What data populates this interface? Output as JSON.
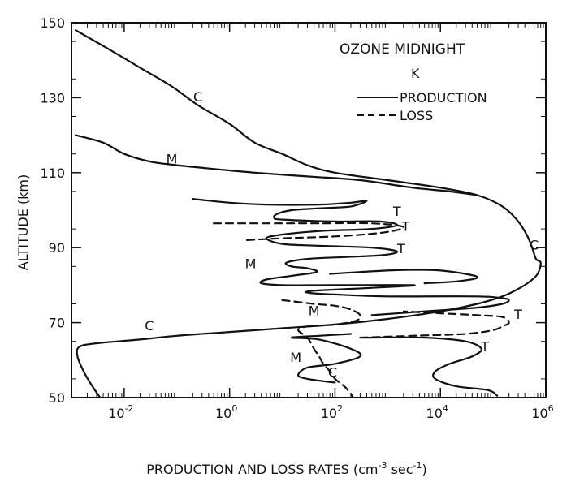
{
  "chart_data": {
    "type": "line",
    "title": "OZONE MIDNIGHT",
    "legend_title": "K",
    "xlabel": "PRODUCTION AND LOSS RATES (cm",
    "xlabel_exp1": "-3",
    "xlabel_mid": " sec",
    "xlabel_exp2": "-1",
    "xlabel_end": ")",
    "ylabel": "ALTITUDE (km)",
    "x_scale": "log",
    "xlim": [
      0.001,
      1000000
    ],
    "ylim": [
      50,
      150
    ],
    "x_ticks": [
      {
        "value": 0.01,
        "base": "10",
        "exp": "-2"
      },
      {
        "value": 1,
        "base": "10",
        "exp": "0"
      },
      {
        "value": 100,
        "base": "10",
        "exp": "2"
      },
      {
        "value": 10000,
        "base": "10",
        "exp": "4"
      },
      {
        "value": 1000000,
        "base": "10",
        "exp": "6"
      }
    ],
    "y_ticks": [
      "50",
      "70",
      "90",
      "110",
      "130",
      "150"
    ],
    "legend_position": "top-right",
    "legend": [
      {
        "label": "PRODUCTION",
        "style": "solid"
      },
      {
        "label": "LOSS",
        "style": "dashed"
      }
    ],
    "series": [
      {
        "label": "C",
        "kind": "production",
        "points": [
          [
            0.0012,
            148
          ],
          [
            0.005,
            143
          ],
          [
            0.02,
            138
          ],
          [
            0.08,
            133
          ],
          [
            0.25,
            128
          ],
          [
            1,
            123
          ],
          [
            3,
            118
          ],
          [
            10,
            115
          ],
          [
            30,
            112
          ],
          [
            100,
            110
          ],
          [
            1000,
            108
          ],
          [
            10000,
            106
          ],
          [
            50000,
            104
          ],
          [
            150000,
            101
          ],
          [
            300000,
            97
          ],
          [
            450000,
            93
          ],
          [
            550000,
            90
          ],
          [
            650000,
            87
          ],
          [
            800000,
            86
          ],
          [
            700000,
            83
          ],
          [
            500000,
            81
          ],
          [
            300000,
            79
          ],
          [
            150000,
            77
          ],
          [
            50000,
            75
          ],
          [
            10000,
            73
          ],
          [
            1000,
            71
          ],
          [
            100,
            69.5
          ],
          [
            10,
            68.5
          ],
          [
            1,
            67.5
          ],
          [
            0.1,
            66.5
          ],
          [
            0.02,
            65.5
          ],
          [
            0.003,
            64.5
          ],
          [
            0.0014,
            63.5
          ],
          [
            0.0013,
            61
          ],
          [
            0.0017,
            57
          ],
          [
            0.0025,
            53
          ],
          [
            0.0035,
            50
          ]
        ]
      },
      {
        "label": "M",
        "kind": "production",
        "points": [
          [
            0.0012,
            120
          ],
          [
            0.004,
            118
          ],
          [
            0.01,
            115
          ],
          [
            0.03,
            113
          ],
          [
            0.1,
            112
          ],
          [
            0.5,
            111
          ],
          [
            3,
            110
          ],
          [
            30,
            109
          ],
          [
            300,
            108
          ],
          [
            3000,
            106
          ],
          [
            15000,
            105
          ],
          [
            50000,
            104
          ]
        ]
      },
      {
        "label": "T",
        "kind": "production",
        "points": [
          [
            0.2,
            103
          ],
          [
            1,
            102
          ],
          [
            5,
            101.5
          ],
          [
            50,
            101.5
          ],
          [
            200,
            102
          ],
          [
            400,
            102.5
          ],
          [
            200,
            101
          ],
          [
            50,
            100.5
          ],
          [
            15,
            100
          ],
          [
            8,
            99
          ],
          [
            7,
            98
          ],
          [
            10,
            97.5
          ],
          [
            100,
            97
          ],
          [
            700,
            97
          ],
          [
            1500,
            96
          ],
          [
            500,
            95
          ],
          [
            60,
            94.5
          ],
          [
            10,
            93.5
          ],
          [
            5,
            92.5
          ],
          [
            10,
            91
          ],
          [
            50,
            90.5
          ],
          [
            500,
            90
          ],
          [
            1500,
            89
          ],
          [
            800,
            88
          ],
          [
            150,
            87.5
          ],
          [
            30,
            87
          ],
          [
            12,
            86
          ],
          [
            15,
            85
          ],
          [
            30,
            84.5
          ],
          [
            45,
            83.5
          ],
          [
            15,
            82.5
          ],
          [
            5,
            81.5
          ],
          [
            4,
            80.5
          ],
          [
            10,
            80
          ],
          [
            100,
            80
          ],
          [
            3000,
            80
          ],
          [
            1000,
            79.5
          ],
          [
            200,
            79
          ],
          [
            40,
            78.5
          ],
          [
            30,
            78
          ],
          [
            100,
            77.5
          ],
          [
            1000,
            77
          ],
          [
            50000,
            77
          ],
          [
            150000,
            76.5
          ],
          [
            200000,
            76
          ],
          [
            150000,
            75
          ],
          [
            50000,
            74
          ],
          [
            5000,
            73
          ],
          [
            500,
            72
          ]
        ]
      },
      {
        "label": "T",
        "kind": "production",
        "points": [
          [
            80,
            83
          ],
          [
            300,
            83.5
          ],
          [
            1500,
            84
          ],
          [
            8000,
            84
          ],
          [
            30000,
            83
          ],
          [
            50000,
            82
          ],
          [
            20000,
            81
          ],
          [
            5000,
            80.5
          ]
        ]
      },
      {
        "label": "M",
        "kind": "production",
        "points": [
          [
            200,
            67
          ],
          [
            50,
            66.5
          ],
          [
            15,
            66
          ],
          [
            50,
            65.5
          ],
          [
            200,
            63
          ],
          [
            300,
            61
          ],
          [
            100,
            59
          ],
          [
            30,
            58
          ],
          [
            20,
            56
          ],
          [
            30,
            55
          ],
          [
            100,
            54
          ]
        ]
      },
      {
        "label": "T",
        "kind": "production",
        "points": [
          [
            350,
            66
          ],
          [
            5000,
            66
          ],
          [
            30000,
            65
          ],
          [
            60000,
            63
          ],
          [
            40000,
            61
          ],
          [
            15000,
            59
          ],
          [
            8000,
            57
          ],
          [
            8000,
            55
          ],
          [
            20000,
            53
          ],
          [
            80000,
            52
          ],
          [
            120000,
            50.5
          ]
        ]
      },
      {
        "label": "T",
        "kind": "loss",
        "points": [
          [
            0.5,
            96.5
          ],
          [
            5,
            96.5
          ],
          [
            50,
            96.5
          ],
          [
            500,
            96.5
          ],
          [
            2000,
            95.5
          ],
          [
            800,
            94
          ],
          [
            100,
            93
          ],
          [
            10,
            92.5
          ],
          [
            2,
            92
          ]
        ]
      },
      {
        "label": "M",
        "kind": "loss",
        "points": [
          [
            10,
            76
          ],
          [
            40,
            75
          ],
          [
            100,
            74.5
          ],
          [
            200,
            73.5
          ],
          [
            300,
            72
          ],
          [
            250,
            70.5
          ],
          [
            100,
            69.5
          ],
          [
            30,
            69
          ],
          [
            20,
            68
          ],
          [
            30,
            66
          ],
          [
            40,
            63
          ],
          [
            50,
            61
          ],
          [
            60,
            59
          ],
          [
            80,
            57
          ],
          [
            100,
            55
          ],
          [
            150,
            53
          ],
          [
            200,
            51
          ],
          [
            220,
            50
          ]
        ]
      },
      {
        "label": "T",
        "kind": "loss",
        "points": [
          [
            300,
            66
          ],
          [
            3000,
            66.5
          ],
          [
            30000,
            67
          ],
          [
            100000,
            68
          ],
          [
            150000,
            69
          ],
          [
            200000,
            70
          ],
          [
            150000,
            71.5
          ],
          [
            50000,
            72
          ],
          [
            10000,
            72.5
          ],
          [
            2000,
            73
          ]
        ]
      }
    ],
    "curve_labels": [
      {
        "text": "C",
        "x": 0.25,
        "y": 129
      },
      {
        "text": "M",
        "x": 0.08,
        "y": 112.5
      },
      {
        "text": "T",
        "x": 1500,
        "y": 98.5
      },
      {
        "text": "T",
        "x": 2200,
        "y": 94.5
      },
      {
        "text": "T",
        "x": 1800,
        "y": 88.5
      },
      {
        "text": "M",
        "x": 2.5,
        "y": 84.5
      },
      {
        "text": "C",
        "x": 600000,
        "y": 89.5
      },
      {
        "text": "M",
        "x": 40,
        "y": 72
      },
      {
        "text": "T",
        "x": 300000,
        "y": 71
      },
      {
        "text": "C",
        "x": 0.03,
        "y": 68
      },
      {
        "text": "T",
        "x": 70000,
        "y": 62.5
      },
      {
        "text": "M",
        "x": 18,
        "y": 59.5
      },
      {
        "text": "C",
        "x": 90,
        "y": 55.5
      }
    ]
  }
}
